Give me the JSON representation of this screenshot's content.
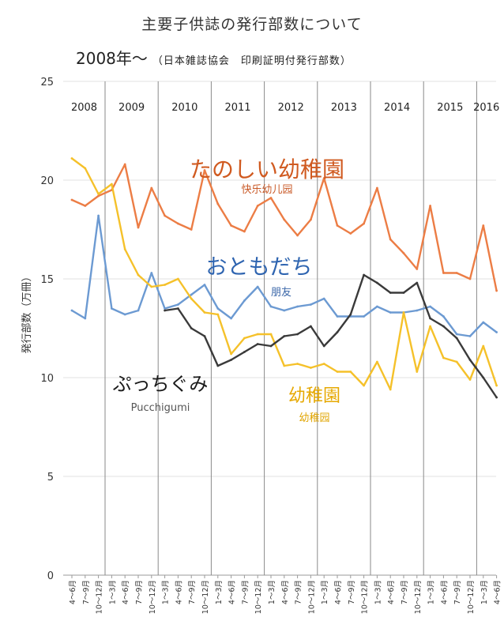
{
  "title_line1": "主要子供誌の発行部数について",
  "title_line2": "2008年～",
  "title_note": "（日本雑誌協会　印刷証明付発行部数）",
  "chart_data": {
    "type": "line",
    "ylabel": "発行部数（万冊）",
    "ylim": [
      0,
      25
    ],
    "yticks": [
      "0",
      "5",
      "10",
      "15",
      "20",
      "25"
    ],
    "years": [
      "2008",
      "2009",
      "2010",
      "2011",
      "2012",
      "2013",
      "2014",
      "2015",
      "2016"
    ],
    "year_start_index": [
      0,
      3,
      7,
      11,
      15,
      19,
      23,
      27,
      31
    ],
    "x_labels": [
      "4〜6月",
      "7〜9月",
      "10〜12月",
      "1〜3月",
      "4〜6月",
      "7〜9月",
      "10〜12月",
      "1〜3月",
      "4〜6月",
      "7〜9月",
      "10〜12月",
      "1〜3月",
      "4〜6月",
      "7〜9月",
      "10〜12月",
      "1〜3月",
      "4〜6月",
      "7〜9月",
      "10〜12月",
      "1〜3月",
      "4〜6月",
      "7〜9月",
      "10〜12月",
      "1〜3月",
      "4〜6月",
      "7〜9月",
      "10〜12月",
      "1〜3月",
      "4〜6月",
      "7〜9月",
      "10〜12月",
      "1〜3月",
      "4〜6月"
    ],
    "series": [
      {
        "name": "たのしい幼稚園",
        "sub": "快乐幼儿园",
        "color": "#ec7d45",
        "name_color": "#d05a20",
        "sub_color": "#c95a28",
        "values": [
          19.0,
          18.7,
          19.2,
          19.5,
          20.8,
          17.6,
          19.6,
          18.2,
          17.8,
          17.5,
          20.5,
          18.8,
          17.7,
          17.4,
          18.7,
          19.1,
          18.0,
          17.2,
          18.0,
          20.1,
          17.7,
          17.3,
          17.8,
          19.6,
          17.0,
          16.3,
          15.5,
          18.7,
          15.3,
          15.3,
          15.0,
          17.7,
          14.4
        ]
      },
      {
        "name": "おともだち",
        "sub": "朋友",
        "color": "#6c9ad2",
        "name_color": "#2e64b0",
        "sub_color": "#3a66a8",
        "values": [
          13.4,
          13.0,
          18.2,
          13.5,
          13.2,
          13.4,
          15.3,
          13.5,
          13.7,
          14.2,
          14.7,
          13.5,
          13.0,
          13.9,
          14.6,
          13.6,
          13.4,
          13.6,
          13.7,
          14.0,
          13.1,
          13.1,
          13.1,
          13.6,
          13.3,
          13.3,
          13.4,
          13.6,
          13.1,
          12.2,
          12.1,
          12.8,
          12.3
        ]
      },
      {
        "name": "幼稚園",
        "sub": "幼稚园",
        "color": "#f5c12a",
        "name_color": "#e6a800",
        "sub_color": "#e0a400",
        "values": [
          21.1,
          20.6,
          19.3,
          19.8,
          16.5,
          15.2,
          14.6,
          14.7,
          15.0,
          14.0,
          13.3,
          13.2,
          11.2,
          12.0,
          12.2,
          12.2,
          10.6,
          10.7,
          10.5,
          10.7,
          10.3,
          10.3,
          9.6,
          10.8,
          9.4,
          13.3,
          10.3,
          12.6,
          11.0,
          10.8,
          9.9,
          11.6,
          9.6
        ]
      },
      {
        "name": "ぷっちぐみ",
        "sub": "Pucchigumi",
        "color": "#3a3a3a",
        "name_color": "#1a1a1a",
        "sub_color": "#555555",
        "start_index": 7,
        "values": [
          13.4,
          13.5,
          12.5,
          12.1,
          10.6,
          10.9,
          11.3,
          11.7,
          11.6,
          12.1,
          12.2,
          12.6,
          11.6,
          12.3,
          13.2,
          15.2,
          14.8,
          14.3,
          14.3,
          14.8,
          13.0,
          12.6,
          12.0,
          10.9,
          10.0,
          9.0
        ]
      }
    ]
  }
}
